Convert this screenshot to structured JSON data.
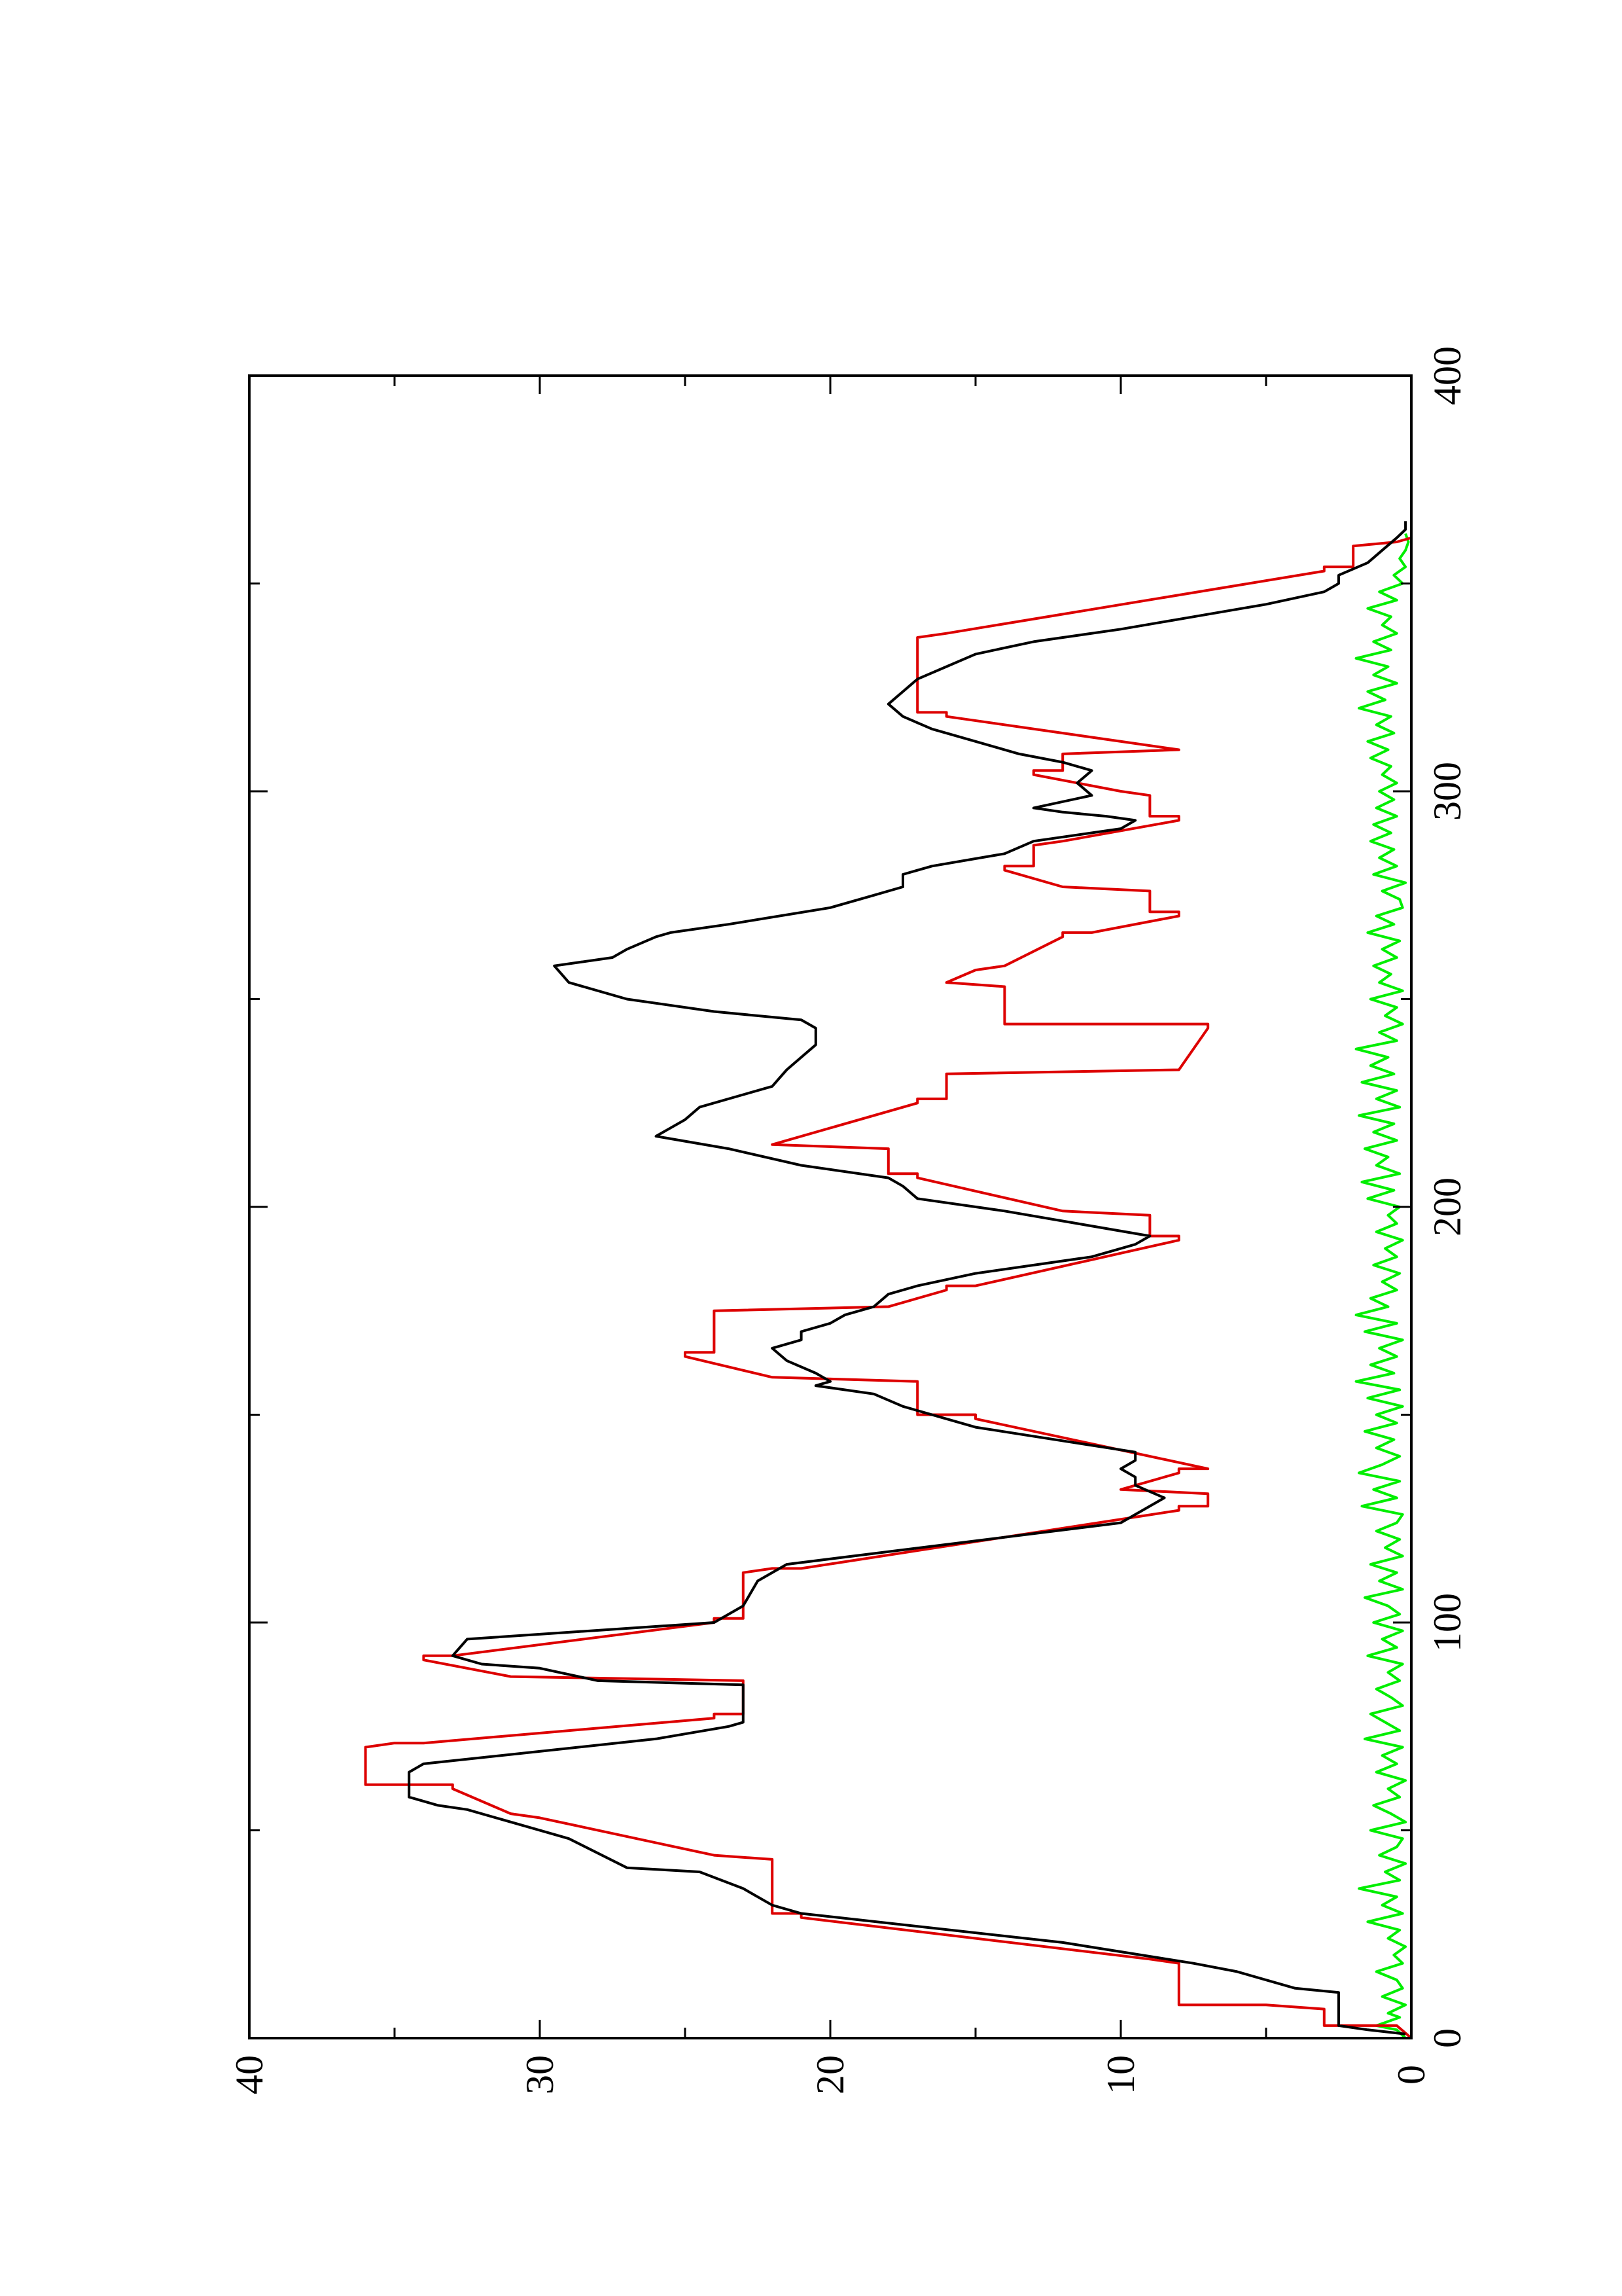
{
  "chart_data": {
    "type": "line",
    "orientation": "rotated-90-ccw",
    "title": "",
    "xlabel": "",
    "ylabel": "",
    "xlim": [
      0,
      400
    ],
    "ylim": [
      0,
      40
    ],
    "x_ticks": [
      0,
      100,
      200,
      300,
      400
    ],
    "y_ticks": [
      0,
      10,
      20,
      30,
      40
    ],
    "x_tick_labels": [
      "0",
      "100",
      "200",
      "300",
      "400"
    ],
    "y_tick_labels": [
      "0",
      "10",
      "20",
      "30",
      "40"
    ],
    "grid": false,
    "legend": "none",
    "series": [
      {
        "color": "#dd0000",
        "x": [
          0,
          3,
          3,
          7,
          8,
          8,
          18,
          19,
          19,
          29,
          30,
          30,
          43,
          44,
          44,
          53,
          53,
          54,
          54,
          60,
          61,
          61,
          70,
          71,
          71,
          77,
          78,
          78,
          86,
          87,
          87,
          91,
          92,
          92,
          100,
          101,
          101,
          112,
          113,
          113,
          127,
          128,
          128,
          131,
          132,
          132,
          136,
          137,
          137,
          149,
          150,
          150,
          158,
          159,
          159,
          164,
          165,
          165,
          175,
          176,
          176,
          180,
          181,
          181,
          192,
          193,
          193,
          198,
          199,
          199,
          207,
          208,
          208,
          214,
          215,
          215,
          225,
          226,
          226,
          232,
          233,
          233,
          243,
          244,
          244,
          253,
          254,
          254,
          257,
          258,
          258,
          265,
          266,
          266,
          270,
          271,
          271,
          276,
          277,
          277,
          281,
          282,
          282,
          287,
          288,
          288,
          293,
          294,
          294,
          299,
          300,
          300,
          304,
          305,
          305,
          309,
          310,
          310,
          318,
          319,
          319,
          337,
          338,
          338,
          353,
          354,
          354,
          359,
          360,
          361
        ],
        "y": [
          0,
          0.5,
          3,
          3,
          5,
          8,
          8,
          9,
          9,
          21,
          21,
          22,
          22,
          24,
          24,
          30,
          30,
          31,
          31,
          33,
          33,
          36,
          36,
          35,
          34,
          24,
          24,
          23,
          23,
          31,
          31,
          34,
          34,
          33,
          24,
          24,
          23,
          23,
          22,
          21,
          8,
          8,
          7,
          7,
          10,
          10,
          8,
          8,
          7,
          15,
          15,
          17,
          17,
          22,
          22,
          25,
          25,
          24,
          24,
          18,
          18,
          16,
          16,
          15,
          8,
          8,
          9,
          9,
          12,
          12,
          17,
          17,
          18,
          18,
          22,
          22,
          17,
          17,
          16,
          16,
          8,
          8,
          7,
          7,
          14,
          14,
          16,
          16,
          15,
          14,
          14,
          12,
          12,
          11,
          8,
          8,
          9,
          9,
          12,
          12,
          14,
          14,
          13,
          13,
          12,
          12,
          8,
          8,
          9,
          9,
          10,
          10,
          13,
          13,
          12,
          12,
          8,
          8,
          16,
          16,
          17,
          17,
          16,
          16,
          3,
          3,
          2,
          2,
          0.5,
          0
        ]
      },
      {
        "color": "#000000",
        "x": [
          1,
          2,
          3,
          11,
          12,
          16,
          18,
          23,
          30,
          32,
          36,
          40,
          41,
          48,
          49,
          55,
          56,
          58,
          64,
          66,
          72,
          75,
          76,
          85,
          86,
          89,
          90,
          92,
          96,
          100,
          104,
          110,
          114,
          124,
          130,
          133,
          135,
          137,
          139,
          141,
          147,
          152,
          155,
          157,
          158,
          160,
          163,
          166,
          168,
          170,
          172,
          174,
          176,
          179,
          181,
          184,
          188,
          191,
          193,
          196,
          199,
          202,
          205,
          207,
          210,
          214,
          217,
          221,
          224,
          227,
          229,
          233,
          236,
          239,
          243,
          245,
          247,
          250,
          254,
          258,
          260,
          262,
          265,
          266,
          268,
          272,
          275,
          277,
          280,
          282,
          285,
          288,
          291,
          293,
          294,
          295,
          296,
          299,
          302,
          305,
          307,
          309,
          312,
          315,
          318,
          321,
          324,
          327,
          330,
          333,
          336,
          339,
          342,
          345,
          348,
          350,
          352,
          355,
          358,
          361,
          363,
          365
        ],
        "y": [
          0.2,
          1.5,
          2.5,
          2.5,
          4,
          6,
          7.5,
          12,
          21,
          22,
          23,
          24.5,
          27,
          29,
          29.5,
          32.5,
          33.5,
          34.5,
          34.5,
          34,
          26,
          23.5,
          23,
          23,
          28,
          30,
          32,
          33,
          32.5,
          24,
          23,
          22.5,
          21.5,
          10,
          8.5,
          9.5,
          9.5,
          10,
          9.5,
          9.5,
          15,
          17.5,
          18.5,
          20.5,
          20,
          20.5,
          21.5,
          22,
          21,
          21,
          20,
          19.5,
          18.5,
          18,
          17,
          15,
          11,
          9.5,
          9,
          11.5,
          14,
          17,
          17.5,
          18,
          21,
          23.5,
          26,
          25,
          24.5,
          23,
          22,
          21.5,
          21,
          20.5,
          20.5,
          21,
          24,
          27,
          29,
          29.5,
          27.5,
          27,
          26,
          25.5,
          23.5,
          20,
          18.5,
          17.5,
          17.5,
          16.5,
          14,
          13,
          10,
          9.5,
          10.5,
          12,
          13,
          11,
          11.5,
          11,
          12,
          13.5,
          15,
          16.5,
          17.5,
          18,
          17.5,
          17,
          16,
          15,
          13,
          10,
          7.5,
          5,
          3,
          2.5,
          2.5,
          1.5,
          1,
          0.5,
          0.2,
          0.2
        ]
      },
      {
        "color": "#00ee00",
        "x": [
          0,
          2,
          3,
          5,
          6,
          8,
          10,
          12,
          14,
          16,
          18,
          20,
          22,
          24,
          26,
          28,
          30,
          32,
          34,
          36,
          38,
          40,
          42,
          44,
          46,
          48,
          50,
          52,
          54,
          56,
          58,
          60,
          62,
          64,
          66,
          68,
          70,
          72,
          74,
          76,
          78,
          80,
          82,
          84,
          86,
          88,
          90,
          92,
          94,
          96,
          98,
          100,
          102,
          104,
          106,
          108,
          110,
          112,
          114,
          116,
          118,
          120,
          122,
          124,
          126,
          128,
          130,
          132,
          134,
          136,
          138,
          140,
          142,
          144,
          146,
          148,
          150,
          152,
          154,
          156,
          158,
          160,
          162,
          164,
          166,
          168,
          170,
          172,
          174,
          176,
          178,
          180,
          182,
          184,
          186,
          188,
          190,
          192,
          194,
          196,
          198,
          200,
          202,
          204,
          206,
          208,
          210,
          212,
          214,
          216,
          218,
          220,
          222,
          224,
          226,
          228,
          230,
          232,
          234,
          236,
          238,
          240,
          242,
          244,
          246,
          248,
          250,
          252,
          254,
          256,
          258,
          260,
          262,
          264,
          266,
          268,
          270,
          272,
          274,
          276,
          278,
          280,
          282,
          284,
          286,
          288,
          290,
          292,
          294,
          296,
          298,
          300,
          302,
          304,
          306,
          308,
          310,
          312,
          314,
          316,
          318,
          320,
          322,
          324,
          326,
          328,
          330,
          332,
          334,
          336,
          338,
          340,
          342,
          344,
          346,
          348,
          350,
          352,
          354,
          356,
          358,
          360,
          362
        ],
        "y": [
          0.2,
          0.5,
          1.2,
          0.4,
          0.8,
          0.2,
          1.0,
          0.3,
          0.5,
          1.2,
          0.3,
          0.6,
          0.2,
          0.8,
          0.4,
          1.5,
          0.3,
          1.0,
          0.5,
          1.8,
          0.4,
          0.9,
          0.2,
          1.1,
          0.5,
          0.3,
          1.4,
          0.2,
          0.7,
          1.3,
          0.4,
          0.8,
          0.2,
          1.2,
          0.5,
          1.0,
          0.3,
          1.6,
          0.4,
          0.9,
          1.4,
          0.3,
          0.7,
          1.2,
          0.4,
          0.8,
          0.3,
          1.5,
          0.5,
          1.0,
          0.3,
          1.3,
          0.4,
          0.8,
          1.6,
          0.3,
          1.1,
          0.5,
          1.4,
          0.3,
          0.9,
          0.4,
          1.2,
          0.5,
          0.3,
          1.7,
          0.5,
          1.3,
          0.4,
          1.8,
          1.0,
          0.4,
          1.2,
          0.6,
          1.6,
          0.5,
          1.2,
          0.3,
          1.5,
          0.4,
          1.9,
          0.6,
          1.4,
          0.5,
          1.1,
          0.3,
          1.6,
          0.5,
          1.9,
          0.8,
          1.4,
          0.5,
          1.0,
          0.4,
          1.3,
          0.5,
          0.9,
          0.3,
          1.2,
          0.5,
          0.8,
          0.4,
          1.5,
          0.6,
          1.7,
          0.4,
          1.2,
          0.8,
          1.6,
          0.5,
          1.3,
          0.6,
          1.8,
          0.4,
          1.2,
          0.5,
          1.7,
          0.6,
          1.4,
          0.8,
          1.9,
          0.5,
          1.1,
          0.3,
          0.9,
          0.5,
          1.4,
          0.3,
          1.1,
          0.7,
          1.3,
          0.5,
          1.0,
          0.4,
          1.5,
          0.6,
          1.2,
          0.3,
          0.4,
          1.0,
          0.2,
          1.3,
          0.5,
          1.1,
          0.6,
          1.4,
          0.7,
          1.3,
          0.5,
          1.2,
          0.6,
          1.1,
          0.5,
          1.0,
          0.7,
          1.4,
          0.8,
          1.5,
          0.6,
          1.2,
          0.7,
          1.8,
          0.9,
          1.5,
          0.5,
          1.3,
          0.8,
          1.9,
          0.7,
          1.3,
          0.5,
          1.0,
          0.7,
          1.5,
          0.5,
          1.1,
          0.3,
          0.6,
          0.2,
          0.4,
          0.2,
          0.1,
          0.2
        ]
      }
    ]
  }
}
